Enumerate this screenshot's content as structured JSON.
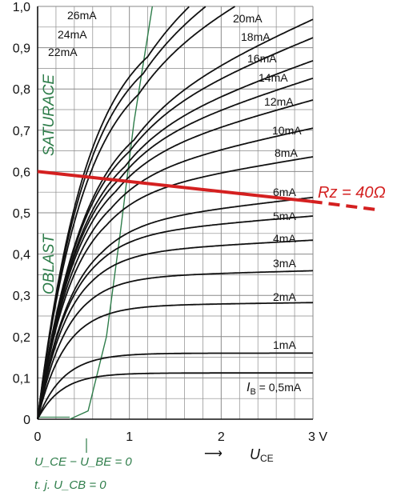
{
  "chart_data": {
    "type": "line",
    "title": "",
    "xlabel": "U_CE",
    "ylabel": "",
    "xlim": [
      0,
      3
    ],
    "ylim": [
      0,
      1
    ],
    "grid": true,
    "x_ticks": [
      "0",
      "1",
      "2",
      "3 V"
    ],
    "y_ticks": [
      "0",
      "0,1",
      "0,2",
      "0,3",
      "0,4",
      "0,5",
      "0,6",
      "0,7",
      "0,8",
      "0,9",
      "1,0"
    ],
    "xlabel_main": "U",
    "xlabel_sub": "CE",
    "series": [
      {
        "name": "0,5mA",
        "sat": 0.112,
        "xs": 0.26,
        "knee": 0.48
      },
      {
        "name": "1mA",
        "sat": 0.16,
        "xs": 0.28,
        "knee": 0.58
      },
      {
        "name": "2mA",
        "sat": 0.275,
        "xs": 0.3,
        "knee": 0.5,
        "slope": 0.003
      },
      {
        "name": "3mA",
        "sat": 0.345,
        "xs": 0.32,
        "knee": 0.55,
        "slope": 0.006
      },
      {
        "name": "4mA",
        "sat": 0.405,
        "xs": 0.34,
        "knee": 0.6,
        "slope": 0.012
      },
      {
        "name": "5mA",
        "sat": 0.45,
        "xs": 0.36,
        "knee": 0.65,
        "slope": 0.018
      },
      {
        "name": "6mA",
        "sat": 0.48,
        "xs": 0.38,
        "knee": 0.7,
        "slope": 0.025
      },
      {
        "name": "8mA",
        "sat": 0.555,
        "xs": 0.4,
        "knee": 0.75,
        "slope": 0.036
      },
      {
        "name": "10mA",
        "sat": 0.6,
        "xs": 0.42,
        "knee": 0.8,
        "slope": 0.048
      },
      {
        "name": "12mA",
        "sat": 0.645,
        "xs": 0.44,
        "knee": 0.85,
        "slope": 0.06
      },
      {
        "name": "14mA",
        "sat": 0.68,
        "xs": 0.46,
        "knee": 0.9,
        "slope": 0.07
      },
      {
        "name": "16mA",
        "sat": 0.71,
        "xs": 0.48,
        "knee": 0.95,
        "slope": 0.078
      },
      {
        "name": "18mA",
        "sat": 0.75,
        "xs": 0.5,
        "knee": 1.0,
        "slope": 0.088
      },
      {
        "name": "20mA",
        "sat": 0.78,
        "xs": 0.52,
        "knee": 1.05,
        "slope": 0.098
      },
      {
        "name": "22mA",
        "sat": 0.9,
        "xs": 0.53,
        "knee": 1.1,
        "slope": 0.11
      },
      {
        "name": "24mA",
        "sat": 0.95,
        "xs": 0.54,
        "knee": 1.15,
        "slope": 0.12
      },
      {
        "name": "26mA",
        "sat": 0.99,
        "xs": 0.55,
        "knee": 1.2,
        "slope": 0.13
      }
    ],
    "saturation_boundary": [
      [
        0.35,
        0
      ],
      [
        0.55,
        0.02
      ],
      [
        0.75,
        0.2
      ],
      [
        0.9,
        0.45
      ],
      [
        1.05,
        0.72
      ],
      [
        1.25,
        1.0
      ]
    ],
    "load_line": {
      "x": [
        0,
        3.5
      ],
      "y": [
        0.6,
        0.515
      ]
    },
    "region_labels": [
      "SATURACE",
      "OBLAST"
    ],
    "annotations": {
      "rz": "Rz = 40Ω",
      "ib_prefix": "I",
      "ib_sub": "B",
      "ib_suffix": " = 0,5mA",
      "note1": "U_CE − U_BE = 0",
      "note2": "t. j. U_CB = 0",
      "arrow": "⟶"
    },
    "colors": {
      "curves": "#111111",
      "boundary": "#2e7d4a",
      "load_line": "#d42020",
      "grid": "#8a8a8a"
    }
  }
}
